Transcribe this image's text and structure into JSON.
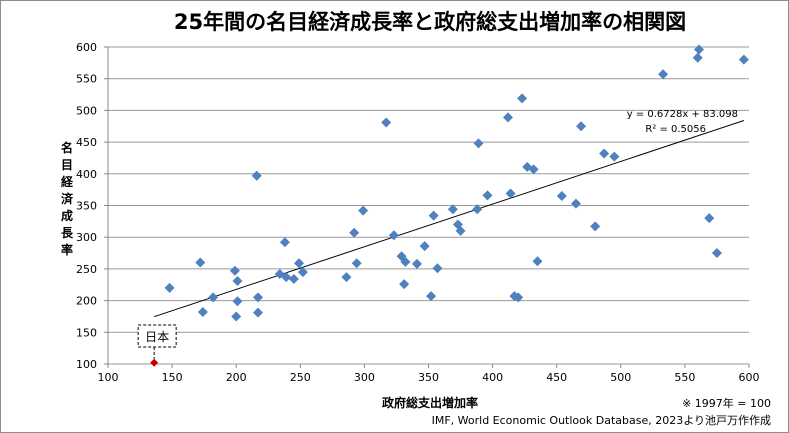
{
  "chart_data": {
    "type": "scatter",
    "title": "25年間の名目経済成長率と政府総支出増加率の相関図",
    "xlabel": "政府総支出増加率",
    "ylabel": "名目経済成長率",
    "xlim": [
      100,
      600
    ],
    "ylim": [
      100,
      600
    ],
    "xticks": [
      100,
      150,
      200,
      250,
      300,
      350,
      400,
      450,
      500,
      550,
      600
    ],
    "yticks": [
      100,
      150,
      200,
      250,
      300,
      350,
      400,
      450,
      500,
      550,
      600
    ],
    "grid": "horizontal",
    "marker_color": "#4f81bd",
    "highlight_color": "#c00000",
    "points": [
      [
        148,
        220
      ],
      [
        172,
        260
      ],
      [
        174,
        182
      ],
      [
        182,
        205
      ],
      [
        199,
        247
      ],
      [
        200,
        175
      ],
      [
        201,
        231
      ],
      [
        201,
        199
      ],
      [
        216,
        397
      ],
      [
        217,
        181
      ],
      [
        217,
        205
      ],
      [
        234,
        242
      ],
      [
        238,
        292
      ],
      [
        239,
        237
      ],
      [
        245,
        234
      ],
      [
        249,
        259
      ],
      [
        252,
        245
      ],
      [
        286,
        237
      ],
      [
        292,
        307
      ],
      [
        294,
        259
      ],
      [
        299,
        342
      ],
      [
        317,
        481
      ],
      [
        323,
        303
      ],
      [
        329,
        270
      ],
      [
        331,
        226
      ],
      [
        332,
        261
      ],
      [
        341,
        258
      ],
      [
        347,
        286
      ],
      [
        352,
        207
      ],
      [
        354,
        334
      ],
      [
        357,
        251
      ],
      [
        369,
        344
      ],
      [
        373,
        320
      ],
      [
        375,
        310
      ],
      [
        388,
        344
      ],
      [
        389,
        448
      ],
      [
        396,
        366
      ],
      [
        412,
        489
      ],
      [
        414,
        369
      ],
      [
        417,
        207
      ],
      [
        420,
        205
      ],
      [
        423,
        519
      ],
      [
        427,
        411
      ],
      [
        432,
        407
      ],
      [
        435,
        262
      ],
      [
        454,
        365
      ],
      [
        465,
        353
      ],
      [
        469,
        475
      ],
      [
        480,
        317
      ],
      [
        487,
        432
      ],
      [
        495,
        427
      ],
      [
        533,
        557
      ],
      [
        560,
        583
      ],
      [
        561,
        596
      ],
      [
        569,
        330
      ],
      [
        575,
        275
      ],
      [
        596,
        580
      ]
    ],
    "highlight": {
      "label": "日本",
      "x": 136,
      "y": 102
    },
    "trendline": {
      "slope": 0.6728,
      "intercept": 83.098,
      "x_range": [
        136,
        596
      ],
      "equation": "y = 0.6728x + 83.098",
      "r2_label": "R² = 0.5056"
    },
    "annotations": {
      "base_note": "※ 1997年 = 100",
      "source": "IMF, World Economic Outlook Database, 2023より池戸万作作成"
    }
  }
}
